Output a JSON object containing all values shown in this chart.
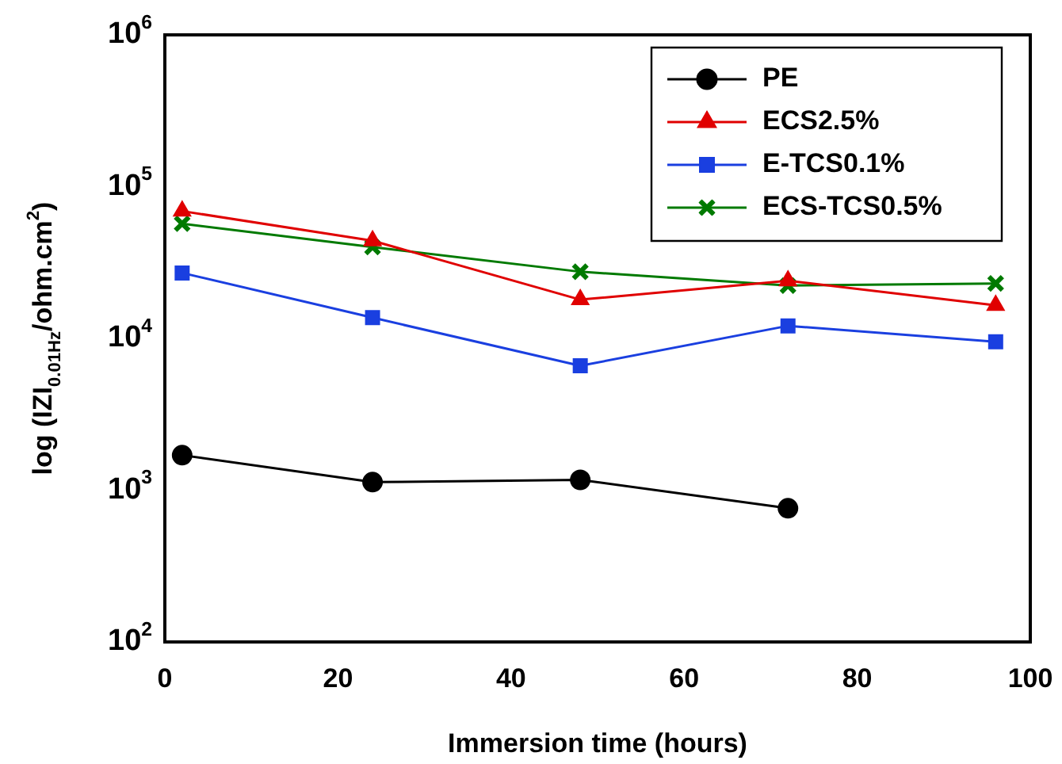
{
  "chart_data": {
    "type": "line",
    "xlabel": "Immersion time (hours)",
    "ylabel": "log (IZI$_{0.01Hz}$/ohm.cm$^{2}$)",
    "x": [
      2,
      24,
      48,
      72,
      96
    ],
    "series": [
      {
        "name": "PE",
        "color": "#000000",
        "marker": "circle",
        "values": [
          1700,
          1130,
          1170,
          760,
          null
        ]
      },
      {
        "name": "ECS2.5%",
        "color": "#e00000",
        "marker": "triangle",
        "values": [
          69000,
          44000,
          18000,
          24000,
          16500
        ]
      },
      {
        "name": "E-TCS0.1%",
        "color": "#1a3fe0",
        "marker": "square",
        "values": [
          27000,
          13700,
          6600,
          12100,
          9500
        ]
      },
      {
        "name": "ECS-TCS0.5%",
        "color": "#007a00",
        "marker": "cross",
        "values": [
          57000,
          40000,
          27500,
          22300,
          23000
        ]
      }
    ],
    "log": "y",
    "xlim": [
      0,
      100
    ],
    "xticks": [
      0,
      20,
      40,
      60,
      80,
      100
    ],
    "ylim": [
      100,
      1000000
    ],
    "yticks": [
      {
        "value": 100,
        "label": "10$^{2}$"
      },
      {
        "value": 1000,
        "label": "10$^{3}$"
      },
      {
        "value": 10000,
        "label": "10$^{4}$"
      },
      {
        "value": 100000,
        "label": "10$^{5}$"
      },
      {
        "value": 1000000,
        "label": "10$^{6}$"
      }
    ],
    "grid": false,
    "legend": "top right",
    "line_style": "solid"
  }
}
